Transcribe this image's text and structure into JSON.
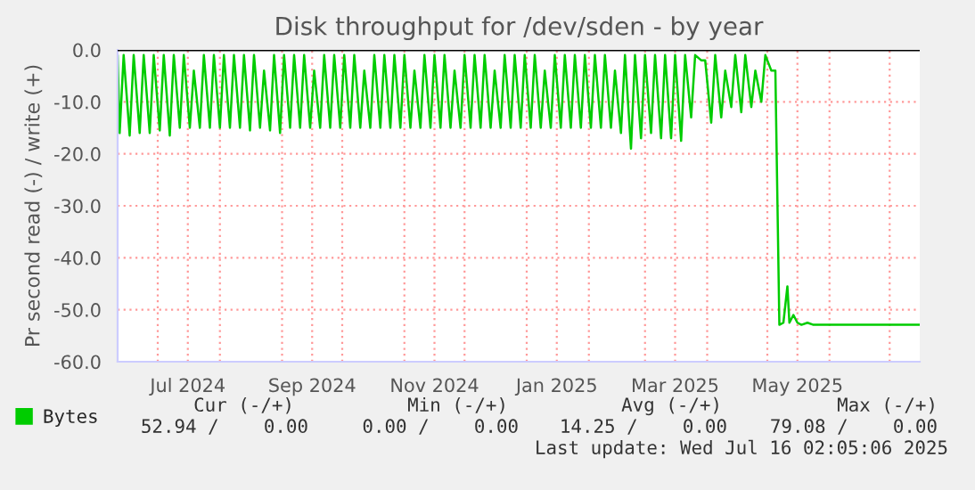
{
  "chart_data": {
    "type": "line",
    "title": "Disk throughput for /dev/sden - by year",
    "ylabel": "Pr second read (-) / write (+)",
    "x": [
      "2024-06-11",
      "2024-06-12",
      "2024-06-14",
      "2024-06-17",
      "2024-06-19",
      "2024-06-22",
      "2024-06-24",
      "2024-06-27",
      "2024-06-29",
      "2024-07-02",
      "2024-07-04",
      "2024-07-07",
      "2024-07-09",
      "2024-07-12",
      "2024-07-14",
      "2024-07-17",
      "2024-07-19",
      "2024-07-22",
      "2024-07-24",
      "2024-07-27",
      "2024-07-29",
      "2024-08-01",
      "2024-08-03",
      "2024-08-06",
      "2024-08-08",
      "2024-08-11",
      "2024-08-13",
      "2024-08-16",
      "2024-08-18",
      "2024-08-21",
      "2024-08-23",
      "2024-08-26",
      "2024-08-28",
      "2024-08-31",
      "2024-09-02",
      "2024-09-05",
      "2024-09-07",
      "2024-09-10",
      "2024-09-12",
      "2024-09-15",
      "2024-09-17",
      "2024-09-20",
      "2024-09-22",
      "2024-09-25",
      "2024-09-27",
      "2024-09-30",
      "2024-10-02",
      "2024-10-05",
      "2024-10-07",
      "2024-10-10",
      "2024-10-12",
      "2024-10-15",
      "2024-10-17",
      "2024-10-20",
      "2024-10-22",
      "2024-10-25",
      "2024-10-27",
      "2024-10-30",
      "2024-11-01",
      "2024-11-04",
      "2024-11-06",
      "2024-11-09",
      "2024-11-11",
      "2024-11-14",
      "2024-11-16",
      "2024-11-19",
      "2024-11-21",
      "2024-11-24",
      "2024-11-26",
      "2024-11-29",
      "2024-12-01",
      "2024-12-04",
      "2024-12-06",
      "2024-12-09",
      "2024-12-11",
      "2024-12-14",
      "2024-12-16",
      "2024-12-19",
      "2024-12-21",
      "2024-12-24",
      "2024-12-26",
      "2024-12-29",
      "2024-12-31",
      "2025-01-03",
      "2025-01-05",
      "2025-01-08",
      "2025-01-10",
      "2025-01-13",
      "2025-01-15",
      "2025-01-18",
      "2025-01-20",
      "2025-01-23",
      "2025-01-25",
      "2025-01-28",
      "2025-01-30",
      "2025-02-02",
      "2025-02-04",
      "2025-02-07",
      "2025-02-09",
      "2025-02-12",
      "2025-02-14",
      "2025-02-17",
      "2025-02-19",
      "2025-02-22",
      "2025-02-24",
      "2025-02-27",
      "2025-03-01",
      "2025-03-04",
      "2025-03-06",
      "2025-03-09",
      "2025-03-11",
      "2025-03-14",
      "2025-03-16",
      "2025-03-19",
      "2025-03-21",
      "2025-03-24",
      "2025-03-26",
      "2025-03-29",
      "2025-03-31",
      "2025-04-03",
      "2025-04-05",
      "2025-04-08",
      "2025-04-10",
      "2025-04-13",
      "2025-04-15",
      "2025-04-18",
      "2025-04-20",
      "2025-04-23",
      "2025-04-25",
      "2025-04-28",
      "2025-04-30",
      "2025-05-03",
      "2025-05-05",
      "2025-05-07",
      "2025-05-09",
      "2025-05-11",
      "2025-05-12",
      "2025-05-14",
      "2025-05-16",
      "2025-05-18",
      "2025-05-21",
      "2025-05-24",
      "2025-07-16"
    ],
    "series": [
      {
        "name": "Bytes",
        "color": "#00cc00",
        "values": [
          -1,
          -16,
          -1,
          -16.5,
          -1,
          -16,
          -1,
          -16,
          -1,
          -15.5,
          -1,
          -16.5,
          -1,
          -15,
          -1,
          -15,
          -4,
          -15,
          -1,
          -15,
          -1,
          -15,
          -1,
          -15,
          -1,
          -15,
          -1,
          -15.5,
          -1,
          -15,
          -4,
          -15.5,
          -1,
          -16,
          -1,
          -15,
          -1,
          -15,
          -1,
          -15,
          -4,
          -15,
          -1,
          -15,
          -1,
          -15,
          -1,
          -15,
          -1,
          -15,
          -4,
          -15,
          -1,
          -15,
          -1,
          -15,
          -1,
          -15,
          -1,
          -15,
          -4,
          -15,
          -1,
          -15,
          -1,
          -15,
          -1,
          -15,
          -4,
          -15,
          -1,
          -15,
          -1,
          -15,
          -1,
          -15,
          -4,
          -15,
          -1,
          -15,
          -1,
          -15,
          -1,
          -15,
          -1,
          -15,
          -4,
          -15,
          -1,
          -15,
          -1,
          -15,
          -1,
          -15,
          -1,
          -15,
          -1,
          -15,
          -1,
          -15,
          -4,
          -16,
          -1,
          -19,
          -1,
          -17,
          -1,
          -16,
          -1,
          -17,
          -1,
          -17,
          -1,
          -17.5,
          -1,
          -13,
          -1,
          -2,
          -2,
          -14,
          -1,
          -13,
          -4,
          -11,
          -1,
          -12,
          -1,
          -11,
          -4,
          -10,
          -1,
          -4,
          -4,
          -52.9,
          -52.5,
          -45.5,
          -52.5,
          -51,
          -52.5,
          -52.9,
          -52.5,
          -52.9,
          -52.9
        ]
      }
    ],
    "xlim": [
      "2024-06-11",
      "2025-07-16"
    ],
    "xticks": [
      {
        "value": "2024-07-01",
        "label": null
      },
      {
        "value": "2024-07-16",
        "label": "Jul 2024"
      },
      {
        "value": "2024-08-01",
        "label": null
      },
      {
        "value": "2024-09-01",
        "label": null
      },
      {
        "value": "2024-09-16",
        "label": "Sep 2024"
      },
      {
        "value": "2024-10-01",
        "label": null
      },
      {
        "value": "2024-11-01",
        "label": null
      },
      {
        "value": "2024-11-16",
        "label": "Nov 2024"
      },
      {
        "value": "2024-12-01",
        "label": null
      },
      {
        "value": "2025-01-01",
        "label": null
      },
      {
        "value": "2025-01-16",
        "label": "Jan 2025"
      },
      {
        "value": "2025-02-01",
        "label": null
      },
      {
        "value": "2025-03-01",
        "label": null
      },
      {
        "value": "2025-03-16",
        "label": "Mar 2025"
      },
      {
        "value": "2025-04-01",
        "label": null
      },
      {
        "value": "2025-05-01",
        "label": null
      },
      {
        "value": "2025-05-16",
        "label": "May 2025"
      },
      {
        "value": "2025-06-01",
        "label": null
      },
      {
        "value": "2025-07-01",
        "label": null
      }
    ],
    "ylim": [
      -60,
      0
    ],
    "yticks": [
      {
        "value": -60,
        "label": "-60.0"
      },
      {
        "value": -50,
        "label": "-50.0"
      },
      {
        "value": -40,
        "label": "-40.0"
      },
      {
        "value": -30,
        "label": "-30.0"
      },
      {
        "value": -20,
        "label": "-20.0"
      },
      {
        "value": -10,
        "label": "-10.0"
      },
      {
        "value": 0,
        "label": "0.0"
      }
    ],
    "ref_lines": [
      {
        "axis": "y",
        "value": 0,
        "color": "#000000"
      }
    ],
    "grid": true,
    "legend": "bottom left",
    "marker": "none",
    "line_style": "solid",
    "annotations": [
      "Cur (-/+)",
      "Min (-/+)",
      "Avg (-/+)",
      "Max (-/+)",
      "52.94 /    0.00",
      "0.00 /    0.00",
      "14.25 /    0.00",
      "79.08 /    0.00",
      "Last update: Wed Jul 16 02:05:06 2025"
    ]
  }
}
